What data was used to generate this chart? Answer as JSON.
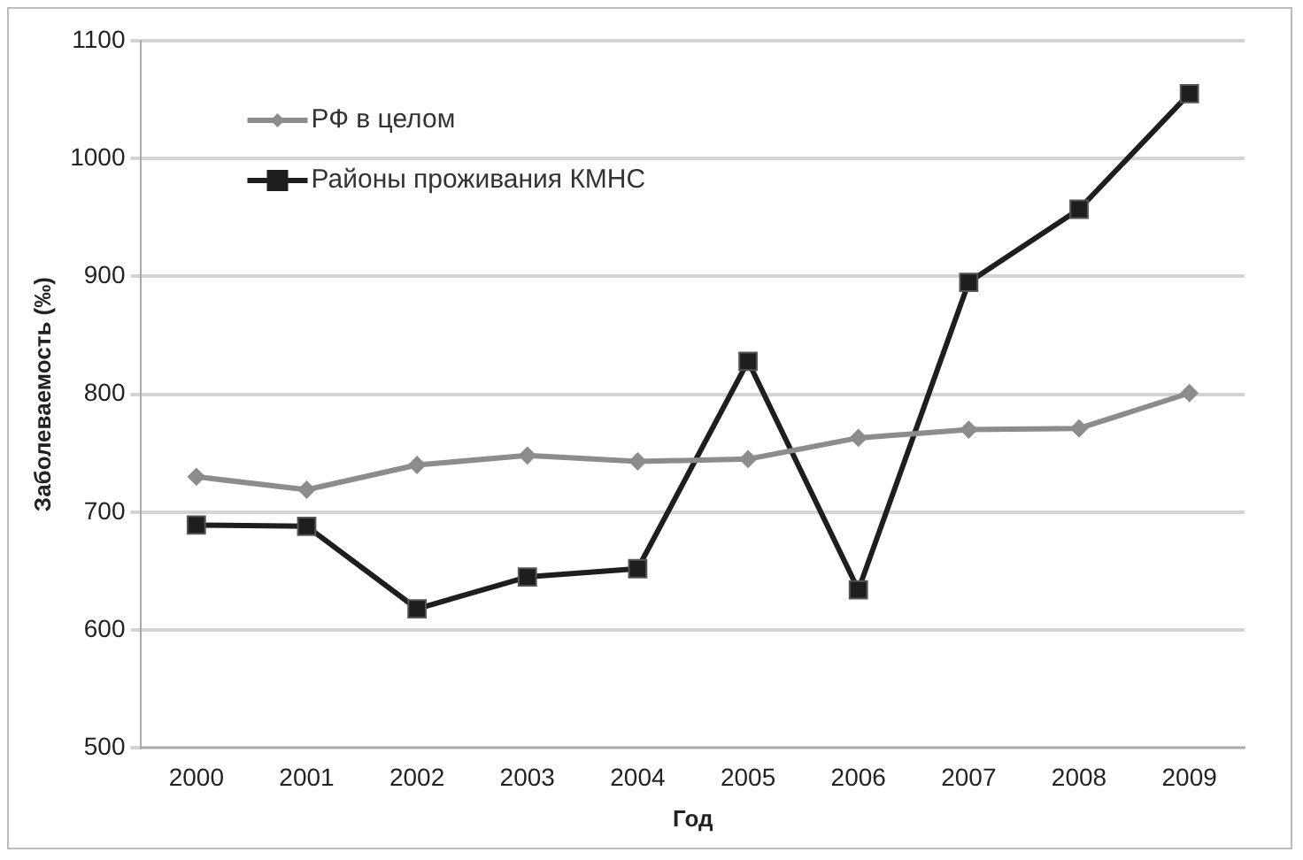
{
  "chart_data": {
    "type": "line",
    "xlabel": "Год",
    "ylabel": "Заболеваемость (‰)",
    "categories": [
      "2000",
      "2001",
      "2002",
      "2003",
      "2004",
      "2005",
      "2006",
      "2007",
      "2008",
      "2009"
    ],
    "series": [
      {
        "name": "РФ в целом",
        "color": "#8c8c8c",
        "marker": "diamond",
        "values": [
          730,
          719,
          740,
          748,
          743,
          745,
          763,
          770,
          771,
          801
        ]
      },
      {
        "name": "Районы проживания КМНС",
        "color": "#1e1e1e",
        "marker": "square",
        "values": [
          689,
          688,
          618,
          645,
          652,
          828,
          634,
          895,
          957,
          1055
        ]
      }
    ],
    "ylim": [
      500,
      1100
    ],
    "yticks": [
      500,
      600,
      700,
      800,
      900,
      1000,
      1100
    ],
    "grid": "y",
    "legend": "top left",
    "line_style": "solid"
  }
}
